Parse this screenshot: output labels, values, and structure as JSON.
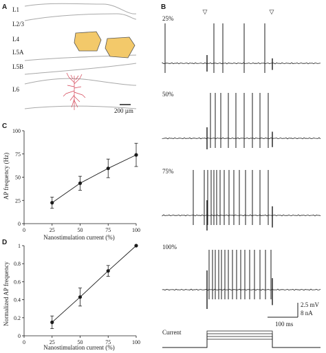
{
  "panels": {
    "a": "A",
    "b": "B",
    "c": "C",
    "d": "D"
  },
  "panel_a": {
    "layers": [
      "L1",
      "L2/3",
      "L4",
      "L5A",
      "L5B",
      "L6"
    ],
    "scalebar": "200 µm",
    "colors": {
      "barrel": "#f3c96a",
      "neuron": "#d43f52",
      "boundary": "#a8a8a8"
    }
  },
  "panel_b": {
    "conditions": [
      "25%",
      "50%",
      "75%",
      "100%"
    ],
    "scale_voltage": "2.5 mV",
    "scale_current": "8 nA",
    "scale_time": "100 ms",
    "current_label": "Current",
    "marker_glyph": "▽"
  },
  "chart_data": [
    {
      "type": "line",
      "panel": "C",
      "xlabel": "Nanostimulation current (%)",
      "ylabel": "AP frequency (Hz)",
      "x": [
        25,
        50,
        75,
        100
      ],
      "values": [
        22.5,
        43.5,
        59.5,
        74
      ],
      "errors": [
        6,
        7.5,
        10,
        12.5
      ],
      "xlim": [
        0,
        100
      ],
      "ylim": [
        0,
        100
      ],
      "xticks": [
        "0",
        "25",
        "50",
        "75",
        "100"
      ],
      "yticks": [
        "0",
        "25",
        "50",
        "75",
        "100"
      ],
      "xtick_values": [
        0,
        25,
        50,
        75,
        100
      ],
      "ytick_values": [
        0,
        25,
        50,
        75,
        100
      ]
    },
    {
      "type": "line",
      "panel": "D",
      "xlabel": "Nanostimulation current (%)",
      "ylabel": "Normalized AP frequency",
      "x": [
        25,
        50,
        75,
        100
      ],
      "values": [
        0.15,
        0.43,
        0.72,
        1.0
      ],
      "errors": [
        0.07,
        0.1,
        0.06,
        0
      ],
      "xlim": [
        0,
        100
      ],
      "ylim": [
        0,
        1
      ],
      "xticks": [
        "0",
        "25",
        "50",
        "75",
        "100"
      ],
      "yticks": [
        "0",
        "0.2",
        "0.4",
        "0.6",
        "0.8",
        "1"
      ],
      "xtick_values": [
        0,
        25,
        50,
        75,
        100
      ],
      "ytick_values": [
        0,
        0.2,
        0.4,
        0.6,
        0.8,
        1
      ]
    }
  ]
}
